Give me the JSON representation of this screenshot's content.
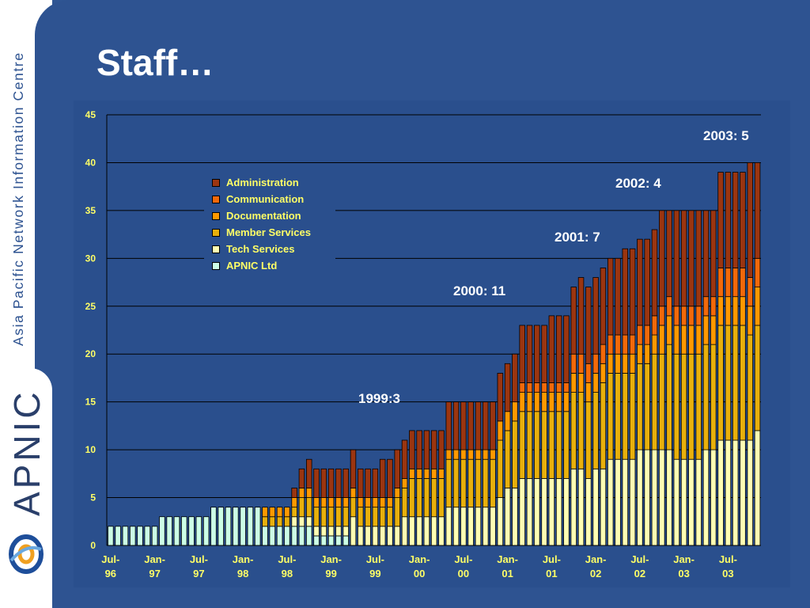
{
  "slide": {
    "title": "Staff…",
    "sidebar_text": "Asia Pacific Network Information Centre",
    "logo_text": "APNIC"
  },
  "annotations": [
    "1999:3",
    "2000: 11",
    "2001: 7",
    "2002: 4",
    "2003: 5"
  ],
  "chart_data": {
    "type": "bar",
    "stacked": true,
    "ylim": [
      0,
      45
    ],
    "yticks": [
      0,
      5,
      10,
      15,
      20,
      25,
      30,
      35,
      40,
      45
    ],
    "x_tick_labels": [
      [
        "Jul-",
        "96"
      ],
      [
        "Jan-",
        "97"
      ],
      [
        "Jul-",
        "97"
      ],
      [
        "Jan-",
        "98"
      ],
      [
        "Jul-",
        "98"
      ],
      [
        "Jan-",
        "99"
      ],
      [
        "Jul-",
        "99"
      ],
      [
        "Jan-",
        "00"
      ],
      [
        "Jul-",
        "00"
      ],
      [
        "Jan-",
        "01"
      ],
      [
        "Jul-",
        "01"
      ],
      [
        "Jan-",
        "02"
      ],
      [
        "Jul-",
        "02"
      ],
      [
        "Jan-",
        "03"
      ],
      [
        "Jul-",
        "03"
      ]
    ],
    "grid": true,
    "legend_position": "upper-left",
    "series": [
      {
        "name": "APNIC Ltd",
        "color": "#ccffe6",
        "values": [
          2,
          2,
          2,
          2,
          2,
          2,
          2,
          3,
          3,
          3,
          3,
          3,
          3,
          3,
          4,
          4,
          4,
          4,
          4,
          4,
          4,
          2,
          2,
          2,
          2,
          2,
          2,
          2,
          1,
          1,
          1,
          1,
          1,
          0,
          0,
          0,
          0,
          0,
          0,
          0,
          0,
          0,
          0,
          0,
          0,
          0,
          0,
          0,
          0,
          0,
          0,
          0,
          0,
          0,
          0,
          0,
          0,
          0,
          0,
          0,
          0,
          0,
          0,
          0,
          0,
          0,
          0,
          0,
          0,
          0,
          0,
          0,
          0,
          0,
          0,
          0,
          0,
          0,
          0,
          0,
          0,
          0,
          0,
          0,
          0,
          0,
          0,
          0,
          0
        ]
      },
      {
        "name": "Tech Services",
        "color": "#ffffb3",
        "values": [
          0,
          0,
          0,
          0,
          0,
          0,
          0,
          0,
          0,
          0,
          0,
          0,
          0,
          0,
          0,
          0,
          0,
          0,
          0,
          0,
          0,
          0,
          0,
          0,
          0,
          1,
          1,
          1,
          1,
          1,
          1,
          1,
          1,
          3,
          2,
          2,
          2,
          2,
          2,
          2,
          3,
          3,
          3,
          3,
          3,
          3,
          4,
          4,
          4,
          4,
          4,
          4,
          4,
          5,
          6,
          6,
          7,
          7,
          7,
          7,
          7,
          7,
          7,
          8,
          8,
          7,
          8,
          8,
          9,
          9,
          9,
          9,
          10,
          10,
          10,
          10,
          10,
          9,
          9,
          9,
          9,
          10,
          10,
          11,
          11,
          11,
          11,
          11,
          12
        ]
      },
      {
        "name": "Member Services",
        "color": "#e8b00c",
        "values": [
          0,
          0,
          0,
          0,
          0,
          0,
          0,
          0,
          0,
          0,
          0,
          0,
          0,
          0,
          0,
          0,
          0,
          0,
          0,
          0,
          0,
          1,
          1,
          1,
          1,
          1,
          2,
          2,
          2,
          2,
          2,
          2,
          2,
          2,
          2,
          2,
          2,
          2,
          2,
          3,
          3,
          4,
          4,
          4,
          4,
          4,
          5,
          5,
          5,
          5,
          5,
          5,
          5,
          6,
          6,
          7,
          7,
          7,
          7,
          7,
          7,
          7,
          7,
          8,
          8,
          8,
          8,
          9,
          9,
          9,
          9,
          9,
          9,
          9,
          10,
          10,
          11,
          11,
          11,
          11,
          11,
          11,
          11,
          12,
          12,
          12,
          12,
          11,
          11
        ]
      },
      {
        "name": "Documentation",
        "color": "#ff9900",
        "values": [
          0,
          0,
          0,
          0,
          0,
          0,
          0,
          0,
          0,
          0,
          0,
          0,
          0,
          0,
          0,
          0,
          0,
          0,
          0,
          0,
          0,
          1,
          1,
          1,
          1,
          1,
          1,
          1,
          1,
          1,
          1,
          1,
          1,
          1,
          1,
          1,
          1,
          1,
          1,
          1,
          1,
          1,
          1,
          1,
          1,
          1,
          1,
          1,
          1,
          1,
          1,
          1,
          1,
          2,
          2,
          2,
          2,
          2,
          2,
          2,
          2,
          2,
          2,
          2,
          2,
          2,
          2,
          2,
          2,
          2,
          2,
          2,
          2,
          2,
          2,
          3,
          3,
          3,
          3,
          3,
          3,
          3,
          3,
          3,
          3,
          3,
          3,
          3,
          4
        ]
      },
      {
        "name": "Communication",
        "color": "#f2690a",
        "values": [
          0,
          0,
          0,
          0,
          0,
          0,
          0,
          0,
          0,
          0,
          0,
          0,
          0,
          0,
          0,
          0,
          0,
          0,
          0,
          0,
          0,
          0,
          0,
          0,
          0,
          0,
          0,
          0,
          0,
          0,
          0,
          0,
          0,
          0,
          0,
          0,
          0,
          0,
          0,
          0,
          0,
          0,
          0,
          0,
          0,
          0,
          0,
          0,
          0,
          0,
          0,
          0,
          0,
          0,
          0,
          0,
          1,
          1,
          1,
          1,
          1,
          1,
          1,
          2,
          2,
          2,
          2,
          2,
          2,
          2,
          2,
          2,
          2,
          2,
          2,
          2,
          2,
          2,
          2,
          2,
          2,
          2,
          2,
          3,
          3,
          3,
          3,
          3,
          3
        ]
      },
      {
        "name": "Administration",
        "color": "#9b3510",
        "values": [
          0,
          0,
          0,
          0,
          0,
          0,
          0,
          0,
          0,
          0,
          0,
          0,
          0,
          0,
          0,
          0,
          0,
          0,
          0,
          0,
          0,
          0,
          0,
          0,
          0,
          1,
          2,
          3,
          3,
          3,
          3,
          3,
          3,
          4,
          3,
          3,
          3,
          4,
          4,
          4,
          4,
          4,
          4,
          4,
          4,
          4,
          5,
          5,
          5,
          5,
          5,
          5,
          5,
          5,
          5,
          5,
          6,
          6,
          6,
          6,
          7,
          7,
          7,
          7,
          8,
          8,
          8,
          8,
          8,
          8,
          9,
          9,
          9,
          9,
          9,
          10,
          9,
          10,
          10,
          10,
          10,
          9,
          9,
          10,
          10,
          10,
          10,
          12,
          10
        ]
      }
    ]
  }
}
